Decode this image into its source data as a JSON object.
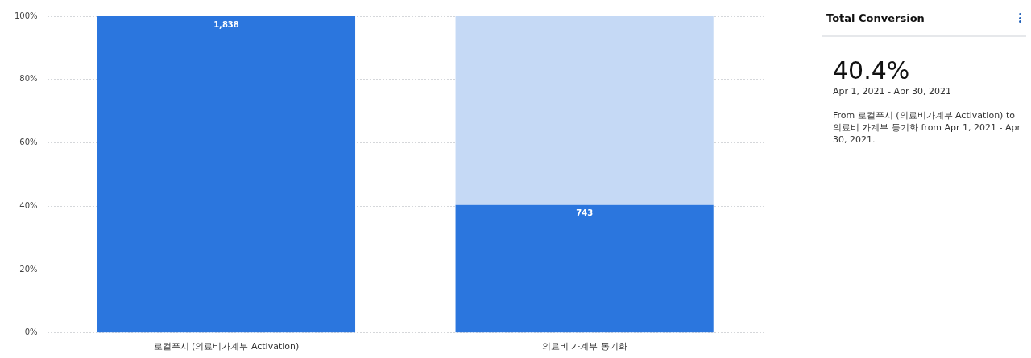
{
  "chart_data": [
    {
      "type": "bar",
      "categories": [
        "로컬푸시 (의료비가계부 Activation)",
        "의료비 가계부 동기화"
      ],
      "stacked": true,
      "series": [
        {
          "color": "#2b76de",
          "values": [
            100,
            40.4
          ]
        },
        {
          "color": "#c5d9f5",
          "values": [
            null,
            59.6
          ]
        }
      ],
      "ylim": [
        0,
        100
      ],
      "yticks": [
        {
          "value": 0,
          "label": "0%"
        },
        {
          "value": 20,
          "label": "20%"
        },
        {
          "value": 40,
          "label": "40%"
        },
        {
          "value": 60,
          "label": "60%"
        },
        {
          "value": 80,
          "label": "80%"
        },
        {
          "value": 100,
          "label": "100%"
        }
      ],
      "annotations": [
        {
          "text": "1,838",
          "x": "로컬푸시 (의료비가계부 Activation)",
          "y": 100
        },
        {
          "text": "743",
          "x": "의료비 가계부 동기화",
          "y": 40.4
        }
      ],
      "grid": "y",
      "legend": false
    },
    {
      "type": "other",
      "title": "Total Conversion",
      "annotations": [
        "40.4%",
        "Apr 1, 2021 - Apr 30, 2021",
        "From 로컬푸시 (의료비가계부 Activation) to 의료비 가계부 동기화 from Apr 1, 2021 - Apr 30, 2021."
      ]
    }
  ]
}
